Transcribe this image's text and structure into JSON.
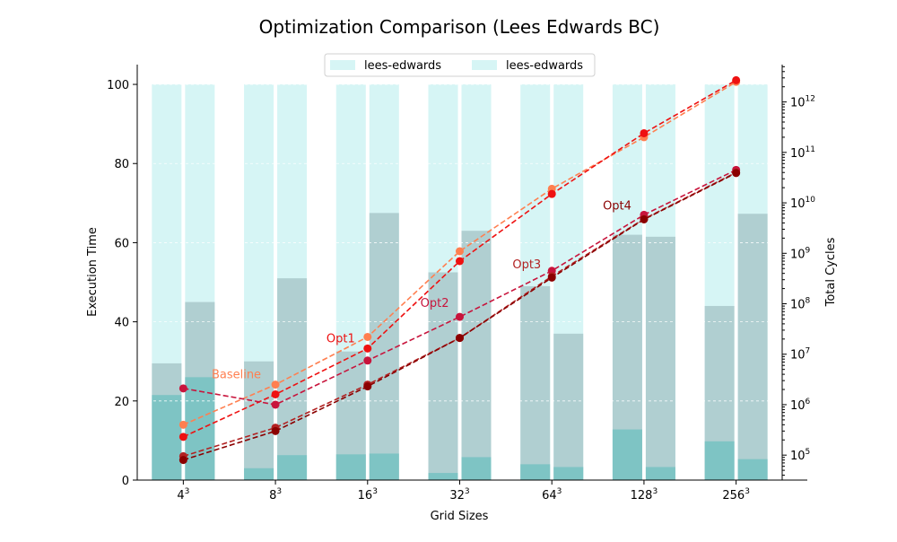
{
  "chart_data": {
    "type": "bar",
    "title": "Optimization Comparison (Lees Edwards BC)",
    "xlabel": "Grid Sizes",
    "ylabel": "Execution Time",
    "y2label": "Total Cycles",
    "categories": [
      {
        "base": "4",
        "exp": "3"
      },
      {
        "base": "8",
        "exp": "3"
      },
      {
        "base": "16",
        "exp": "3"
      },
      {
        "base": "32",
        "exp": "3"
      },
      {
        "base": "64",
        "exp": "3"
      },
      {
        "base": "128",
        "exp": "3"
      },
      {
        "base": "256",
        "exp": "3"
      }
    ],
    "ylim": [
      0,
      105
    ],
    "y_ticks": [
      "0",
      "20",
      "40",
      "60",
      "80",
      "100"
    ],
    "y2_scale": "log",
    "y2lim": [
      32000,
      5500000000000.0
    ],
    "y2_ticks": [
      {
        "base": "10",
        "exp": "5"
      },
      {
        "base": "10",
        "exp": "6"
      },
      {
        "base": "10",
        "exp": "7"
      },
      {
        "base": "10",
        "exp": "8"
      },
      {
        "base": "10",
        "exp": "9"
      },
      {
        "base": "10",
        "exp": "10"
      },
      {
        "base": "10",
        "exp": "11"
      },
      {
        "base": "10",
        "exp": "12"
      }
    ],
    "legend": {
      "placement": "top-center",
      "entries": [
        "lees-edwards",
        "lees-edwards"
      ]
    },
    "grid": "horizontal-on-bars",
    "bar_groups": [
      {
        "name": "lees-edwards",
        "total": [
          100,
          100,
          100,
          100,
          100,
          100,
          100
        ],
        "middle": [
          29.5,
          30,
          32.5,
          52.5,
          49,
          62,
          44
        ],
        "bottom": [
          21.5,
          3,
          6.5,
          1.8,
          4,
          12.8,
          9.8
        ]
      },
      {
        "name": "lees-edwards",
        "total": [
          100,
          100,
          100,
          100,
          100,
          100,
          100
        ],
        "middle": [
          45,
          51,
          67.5,
          63,
          37,
          61.5,
          67.3
        ],
        "bottom": [
          26,
          6.3,
          6.7,
          5.8,
          3.3,
          3.3,
          5.3
        ]
      }
    ],
    "series": [
      {
        "label": "Baseline",
        "color": "#ff7f50",
        "values": [
          400000,
          2500000,
          22000000,
          1100000000,
          19000000000,
          200000000000,
          2500000000000
        ]
      },
      {
        "label": "Opt1",
        "color": "#ee1111",
        "values": [
          230000,
          1600000,
          13000000,
          700000000,
          15000000000,
          240000000000,
          2700000000000
        ]
      },
      {
        "label": "Opt2",
        "color": "#c8143c",
        "values": [
          2100000,
          1000000,
          7500000,
          55000000,
          450000000,
          5800000000,
          45000000000
        ]
      },
      {
        "label": "Opt3",
        "color": "#b22222",
        "values": [
          95000,
          350000,
          2500000,
          21000000,
          350000000,
          4800000000,
          40000000000
        ]
      },
      {
        "label": "Opt4",
        "color": "#8b0000",
        "values": [
          80000,
          300000,
          2300000,
          21000000,
          330000000,
          4700000000,
          39000000000
        ]
      }
    ]
  }
}
